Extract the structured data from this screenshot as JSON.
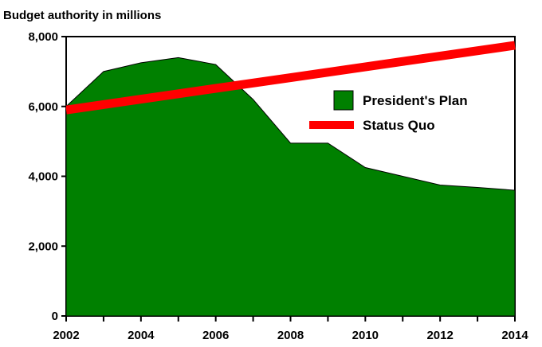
{
  "chart_data": {
    "type": "area",
    "title": "",
    "subtitle": "Budget authority in millions",
    "xlabel": "",
    "ylabel": "",
    "xlim": [
      2002,
      2014
    ],
    "ylim": [
      0,
      8000
    ],
    "x_ticks": [
      2002,
      2004,
      2006,
      2008,
      2010,
      2012,
      2014
    ],
    "x_tick_labels": [
      "2002",
      "2004",
      "2006",
      "2008",
      "2010",
      "2012",
      "2014"
    ],
    "y_ticks": [
      0,
      2000,
      4000,
      6000,
      8000
    ],
    "y_tick_labels": [
      "0",
      "2,000",
      "4,000",
      "6,000",
      "8,000"
    ],
    "grid": false,
    "legend_position": "right",
    "series": [
      {
        "name": "President's Plan",
        "kind": "area",
        "color": "#008000",
        "x": [
          2002,
          2003,
          2004,
          2005,
          2006,
          2007,
          2008,
          2009,
          2010,
          2011,
          2012,
          2013,
          2014
        ],
        "values": [
          6000,
          7000,
          7250,
          7400,
          7200,
          6200,
          4950,
          4950,
          4250,
          4000,
          3750,
          3680,
          3600
        ]
      },
      {
        "name": "Status Quo",
        "kind": "line",
        "color": "#ff0000",
        "x": [
          2002,
          2014
        ],
        "values": [
          5900,
          7750
        ]
      }
    ]
  }
}
